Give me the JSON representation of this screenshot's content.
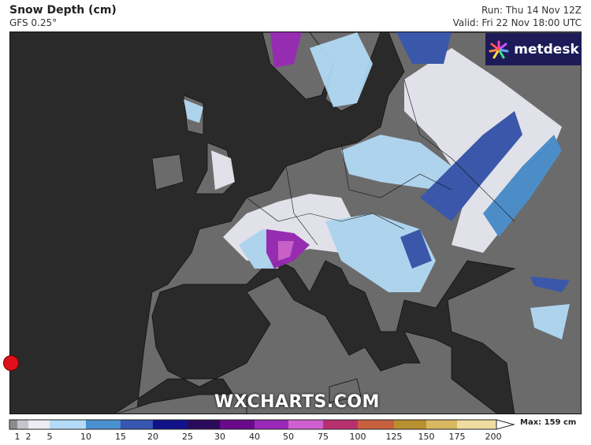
{
  "header": {
    "title": "Snow Depth (cm)",
    "model": "GFS 0.25°",
    "run": "Run: Thu 14 Nov 12Z",
    "valid": "Valid: Fri 22 Nov 18:00 UTC"
  },
  "logo": {
    "text": "metdesk",
    "icon": "starburst-icon"
  },
  "watermark": "WXCHARTS.COM",
  "legend": {
    "max_label": "Max: 159 cm",
    "ticks": [
      "1",
      "2",
      "5",
      "10",
      "15",
      "20",
      "25",
      "30",
      "40",
      "50",
      "75",
      "100",
      "125",
      "150",
      "175",
      "200"
    ],
    "colors": [
      "#8c8c8c",
      "#c4c4cc",
      "#ececf4",
      "#b4dcf8",
      "#4a90d0",
      "#3656b0",
      "#12128a",
      "#2a0a5a",
      "#6a0a8a",
      "#9a28b8",
      "#d060d0",
      "#b83070",
      "#c86040",
      "#b89030",
      "#d8b860",
      "#f0dca0"
    ],
    "units": "cm"
  },
  "colors": {
    "sea": "#2a2a2a",
    "land": "#6b6b6b",
    "marker": "#e0101a"
  },
  "marker": {
    "icon": "location-dot-icon"
  }
}
